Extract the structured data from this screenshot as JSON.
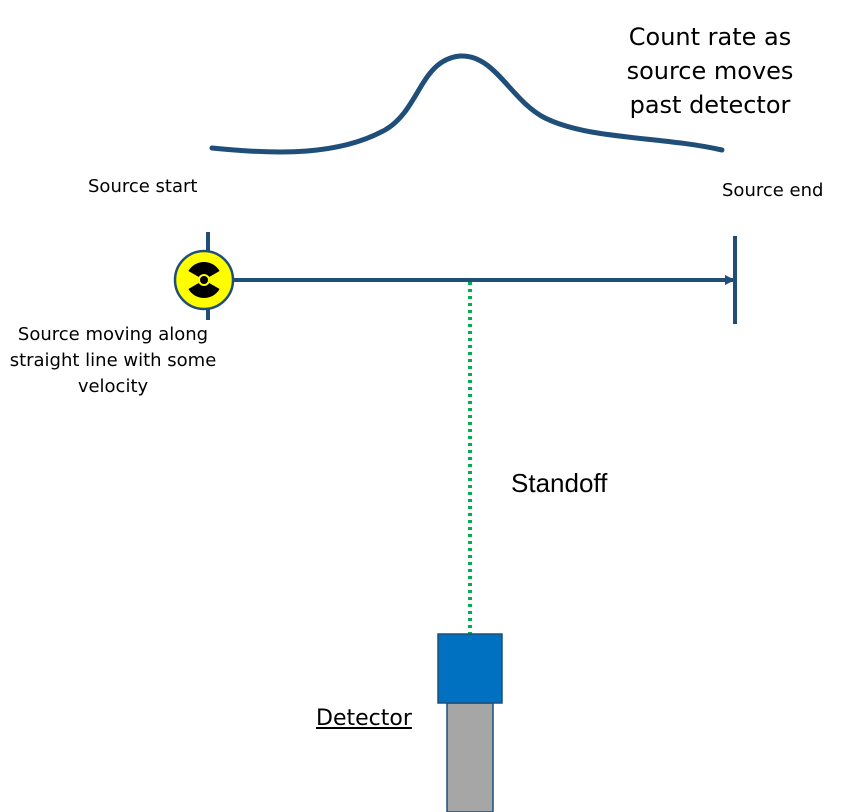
{
  "labels": {
    "count_rate": "Count rate as source moves past detector",
    "source_start": "Source start",
    "source_end": "Source end",
    "source_moving": "Source moving along straight line with some velocity",
    "standoff": "Standoff",
    "detector": "Detector"
  },
  "icons": {
    "source": "radiation-trefoil-icon"
  },
  "colors": {
    "line": "#1f4e79",
    "standoff_line": "#00b050",
    "radiation_fill": "#ffff00",
    "detector_head": "#0070c0",
    "detector_body": "#a6a6a6"
  }
}
